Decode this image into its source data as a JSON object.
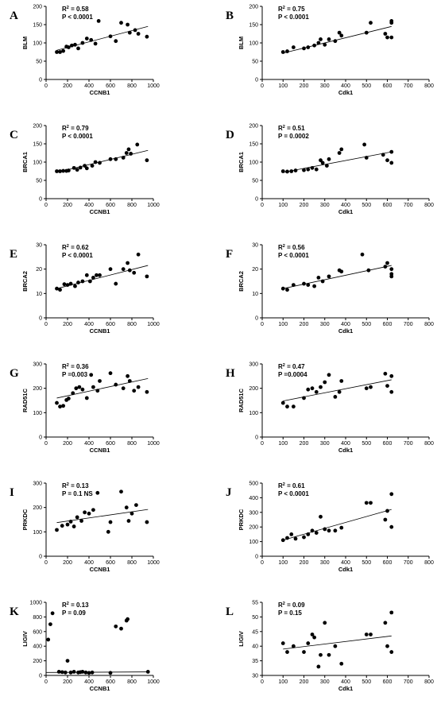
{
  "chart_data": [
    {
      "type": "scatter",
      "panel": "A",
      "xlabel": "CCNB1",
      "ylabel": "BLM",
      "xlim": [
        0,
        1000
      ],
      "ylim": [
        0,
        200
      ],
      "xticks": [
        "0",
        "200",
        "400",
        "600",
        "800",
        "1000"
      ],
      "yticks": [
        "0",
        "50",
        "100",
        "150",
        "200"
      ],
      "r2": "0.58",
      "p": "P < 0.0001",
      "trend": [
        [
          100,
          80
        ],
        [
          950,
          145
        ]
      ],
      "x": [
        100,
        130,
        160,
        190,
        210,
        240,
        270,
        300,
        340,
        380,
        420,
        460,
        490,
        600,
        650,
        700,
        760,
        780,
        830,
        860,
        940
      ],
      "y": [
        75,
        75,
        78,
        90,
        88,
        93,
        95,
        85,
        100,
        112,
        108,
        98,
        160,
        118,
        105,
        155,
        150,
        128,
        135,
        125,
        117
      ]
    },
    {
      "type": "scatter",
      "panel": "B",
      "xlabel": "Cdk1",
      "ylabel": "BLM",
      "xlim": [
        0,
        800
      ],
      "ylim": [
        0,
        200
      ],
      "xticks": [
        "0",
        "100",
        "200",
        "300",
        "400",
        "500",
        "600",
        "700",
        "800"
      ],
      "yticks": [
        "0",
        "50",
        "100",
        "150",
        "200"
      ],
      "r2": "0.75",
      "p": "P < 0.0001",
      "trend": [
        [
          100,
          72
        ],
        [
          620,
          145
        ]
      ],
      "x": [
        100,
        120,
        150,
        200,
        220,
        250,
        270,
        280,
        300,
        320,
        350,
        370,
        380,
        500,
        520,
        590,
        600,
        620,
        620,
        620
      ],
      "y": [
        75,
        77,
        88,
        85,
        88,
        93,
        100,
        110,
        95,
        110,
        105,
        128,
        120,
        128,
        155,
        125,
        115,
        155,
        160,
        115
      ]
    },
    {
      "type": "scatter",
      "panel": "C",
      "xlabel": "CCNB1",
      "ylabel": "BRCA1",
      "xlim": [
        0,
        1000
      ],
      "ylim": [
        0,
        200
      ],
      "xticks": [
        "0",
        "200",
        "400",
        "600",
        "800",
        "1000"
      ],
      "yticks": [
        "0",
        "50",
        "100",
        "150",
        "200"
      ],
      "r2": "0.79",
      "p": "P < 0.0001",
      "trend": [
        [
          100,
          72
        ],
        [
          950,
          132
        ]
      ],
      "x": [
        100,
        130,
        160,
        190,
        210,
        260,
        290,
        320,
        360,
        380,
        430,
        460,
        500,
        600,
        650,
        720,
        750,
        770,
        790,
        850,
        940
      ],
      "y": [
        75,
        75,
        76,
        76,
        77,
        84,
        79,
        85,
        90,
        83,
        90,
        100,
        98,
        108,
        108,
        112,
        125,
        135,
        123,
        148,
        105
      ]
    },
    {
      "type": "scatter",
      "panel": "D",
      "xlabel": "Cdk1",
      "ylabel": "BRCA1",
      "xlim": [
        0,
        800
      ],
      "ylim": [
        0,
        200
      ],
      "xticks": [
        "0",
        "100",
        "200",
        "300",
        "400",
        "500",
        "600",
        "700",
        "800"
      ],
      "yticks": [
        "0",
        "50",
        "100",
        "150",
        "200"
      ],
      "r2": "0.51",
      "p": "P = 0.0002",
      "trend": [
        [
          100,
          72
        ],
        [
          620,
          128
        ]
      ],
      "x": [
        100,
        120,
        140,
        160,
        200,
        220,
        240,
        260,
        280,
        290,
        310,
        320,
        370,
        380,
        490,
        500,
        580,
        600,
        620,
        620
      ],
      "y": [
        75,
        74,
        75,
        77,
        78,
        80,
        84,
        80,
        105,
        98,
        90,
        108,
        125,
        135,
        148,
        112,
        120,
        105,
        98,
        128
      ]
    },
    {
      "type": "scatter",
      "panel": "E",
      "xlabel": "CCNB1",
      "ylabel": "BRCA2",
      "xlim": [
        0,
        1000
      ],
      "ylim": [
        0,
        30
      ],
      "xticks": [
        "0",
        "200",
        "400",
        "600",
        "800",
        "1000"
      ],
      "yticks": [
        "0",
        "10",
        "20",
        "30"
      ],
      "r2": "0.62",
      "p": "P < 0.0001",
      "trend": [
        [
          100,
          12
        ],
        [
          950,
          21.5
        ]
      ],
      "x": [
        100,
        130,
        170,
        200,
        230,
        270,
        300,
        340,
        380,
        410,
        440,
        470,
        500,
        600,
        650,
        720,
        760,
        780,
        820,
        860,
        940
      ],
      "y": [
        12,
        11.5,
        13.8,
        13.5,
        14,
        13,
        14.5,
        15,
        17.5,
        15,
        16.5,
        17.5,
        17.5,
        20,
        14,
        20,
        22.5,
        19.5,
        18.5,
        26,
        17
      ]
    },
    {
      "type": "scatter",
      "panel": "F",
      "xlabel": "Cdk1",
      "ylabel": "BRCA2",
      "xlim": [
        0,
        800
      ],
      "ylim": [
        0,
        30
      ],
      "xticks": [
        "0",
        "100",
        "200",
        "300",
        "400",
        "500",
        "600",
        "700",
        "800"
      ],
      "yticks": [
        "0",
        "10",
        "20",
        "30"
      ],
      "r2": "0.56",
      "p": "P < 0.0001",
      "trend": [
        [
          100,
          12
        ],
        [
          620,
          21.5
        ]
      ],
      "x": [
        100,
        120,
        150,
        200,
        220,
        250,
        270,
        290,
        320,
        370,
        380,
        480,
        510,
        590,
        600,
        620,
        620,
        620
      ],
      "y": [
        12,
        11.5,
        13.5,
        14,
        13.5,
        13,
        16.5,
        15,
        17,
        19.5,
        19,
        26,
        19.5,
        21,
        22.5,
        18,
        17,
        20
      ]
    },
    {
      "type": "scatter",
      "panel": "G",
      "xlabel": "CCNB1",
      "ylabel": "RAD51C",
      "xlim": [
        0,
        1000
      ],
      "ylim": [
        0,
        300
      ],
      "xticks": [
        "0",
        "200",
        "400",
        "600",
        "800",
        "1000"
      ],
      "yticks": [
        "0",
        "100",
        "200",
        "300"
      ],
      "r2": "0.36",
      "p": "P =0.003",
      "trend": [
        [
          100,
          160
        ],
        [
          950,
          240
        ]
      ],
      "x": [
        100,
        130,
        160,
        190,
        210,
        250,
        280,
        310,
        340,
        380,
        420,
        440,
        480,
        500,
        600,
        650,
        720,
        760,
        780,
        820,
        860,
        940
      ],
      "y": [
        140,
        125,
        128,
        152,
        158,
        180,
        200,
        205,
        195,
        160,
        255,
        205,
        190,
        230,
        262,
        215,
        200,
        250,
        230,
        190,
        205,
        185
      ]
    },
    {
      "type": "scatter",
      "panel": "H",
      "xlabel": "Cdk1",
      "ylabel": "RAD51C",
      "xlim": [
        0,
        800
      ],
      "ylim": [
        0,
        300
      ],
      "xticks": [
        "0",
        "100",
        "200",
        "300",
        "400",
        "500",
        "600",
        "700",
        "800"
      ],
      "yticks": [
        "0",
        "100",
        "200",
        "300"
      ],
      "r2": "0.47",
      "p": "P =0.0004",
      "trend": [
        [
          100,
          148
        ],
        [
          620,
          235
        ]
      ],
      "x": [
        100,
        120,
        150,
        200,
        220,
        240,
        260,
        280,
        300,
        320,
        350,
        370,
        380,
        500,
        520,
        590,
        600,
        620,
        620
      ],
      "y": [
        140,
        125,
        125,
        160,
        195,
        200,
        185,
        205,
        225,
        255,
        165,
        185,
        230,
        200,
        205,
        260,
        210,
        250,
        185
      ]
    },
    {
      "type": "scatter",
      "panel": "I",
      "xlabel": "CCNB1",
      "ylabel": "PRKDC",
      "xlim": [
        0,
        1000
      ],
      "ylim": [
        0,
        300
      ],
      "xticks": [
        "0",
        "200",
        "400",
        "600",
        "800",
        "1000"
      ],
      "yticks": [
        "0",
        "100",
        "200",
        "300"
      ],
      "r2": "0.13",
      "p": "P = 0.1 NS",
      "trend": [
        [
          100,
          138
        ],
        [
          950,
          192
        ]
      ],
      "x": [
        100,
        150,
        200,
        230,
        260,
        290,
        330,
        360,
        400,
        440,
        480,
        580,
        600,
        700,
        750,
        770,
        800,
        840,
        940
      ],
      "y": [
        108,
        125,
        130,
        142,
        122,
        160,
        145,
        180,
        175,
        190,
        260,
        100,
        140,
        265,
        200,
        145,
        175,
        210,
        140
      ]
    },
    {
      "type": "scatter",
      "panel": "J",
      "xlabel": "Cdk1",
      "ylabel": "PRKDC",
      "xlim": [
        0,
        800
      ],
      "ylim": [
        0,
        500
      ],
      "xticks": [
        "0",
        "100",
        "200",
        "300",
        "400",
        "500",
        "600",
        "700",
        "800"
      ],
      "yticks": [
        "0",
        "100",
        "200",
        "300",
        "400",
        "500"
      ],
      "r2": "0.61",
      "p": "P < 0.0001",
      "trend": [
        [
          100,
          110
        ],
        [
          620,
          320
        ]
      ],
      "x": [
        100,
        120,
        140,
        160,
        200,
        220,
        240,
        260,
        280,
        300,
        320,
        350,
        380,
        500,
        520,
        590,
        600,
        620,
        620
      ],
      "y": [
        110,
        125,
        150,
        120,
        130,
        150,
        175,
        160,
        270,
        185,
        175,
        175,
        195,
        365,
        365,
        250,
        310,
        200,
        425
      ]
    },
    {
      "type": "scatter",
      "panel": "K",
      "xlabel": "CCNB1",
      "ylabel": "LIGIV",
      "xlim": [
        0,
        1000
      ],
      "ylim": [
        0,
        1000
      ],
      "xticks": [
        "0",
        "200",
        "400",
        "600",
        "800",
        "1000"
      ],
      "yticks": [
        "0",
        "200",
        "400",
        "600",
        "800",
        "1000"
      ],
      "r2": "0.13",
      "p": "P = 0.09",
      "trend": [
        [
          0,
          40
        ],
        [
          950,
          48
        ]
      ],
      "x": [
        20,
        40,
        60,
        120,
        150,
        180,
        200,
        230,
        260,
        300,
        320,
        340,
        370,
        400,
        430,
        600,
        650,
        700,
        750,
        760,
        950
      ],
      "y": [
        490,
        700,
        850,
        50,
        45,
        40,
        200,
        40,
        50,
        40,
        45,
        50,
        40,
        35,
        40,
        35,
        670,
        640,
        750,
        770,
        50
      ]
    },
    {
      "type": "scatter",
      "panel": "L",
      "xlabel": "Cdk1",
      "ylabel": "LIGIV",
      "xlim": [
        0,
        800
      ],
      "ylim": [
        30,
        55
      ],
      "xticks": [
        "0",
        "100",
        "200",
        "300",
        "400",
        "500",
        "600",
        "700",
        "800"
      ],
      "yticks": [
        "30",
        "35",
        "40",
        "45",
        "50",
        "55"
      ],
      "r2": "0.09",
      "p": "P = 0.15",
      "trend": [
        [
          100,
          39
        ],
        [
          620,
          43.5
        ]
      ],
      "x": [
        100,
        120,
        150,
        200,
        220,
        240,
        250,
        270,
        280,
        300,
        320,
        350,
        380,
        500,
        520,
        590,
        600,
        620,
        620
      ],
      "y": [
        41,
        38,
        40,
        38,
        41,
        44,
        43,
        33,
        37,
        48,
        37,
        40,
        34,
        44,
        44,
        48,
        40,
        51.5,
        38
      ]
    }
  ]
}
